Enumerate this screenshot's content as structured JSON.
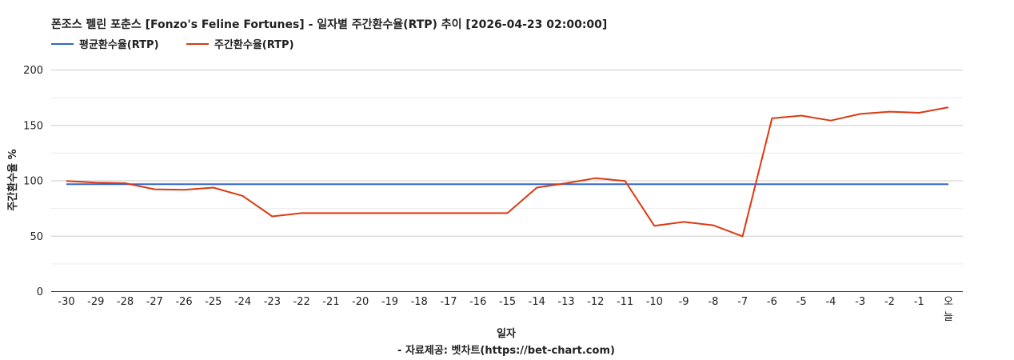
{
  "chart_data": {
    "type": "line",
    "title": "폰조스 펠린 포춘스 [Fonzo's Feline Fortunes] - 일자별 주간환수율(RTP) 추이 [2026-04-23 02:00:00]",
    "xlabel": "일자",
    "ylabel": "주간환수율 %",
    "source": "- 자료제공: 벳차트(https://bet-chart.com)",
    "legend_position": "top-left",
    "grid": true,
    "ylim": [
      0,
      200
    ],
    "yticks": [
      "0",
      "50",
      "100",
      "150",
      "200"
    ],
    "categories": [
      "-30",
      "-29",
      "-28",
      "-27",
      "-26",
      "-25",
      "-24",
      "-23",
      "-22",
      "-21",
      "-20",
      "-19",
      "-18",
      "-17",
      "-16",
      "-15",
      "-14",
      "-13",
      "-12",
      "-11",
      "-10",
      "-9",
      "-8",
      "-7",
      "-6",
      "-5",
      "-4",
      "-3",
      "-2",
      "-1",
      "오늘"
    ],
    "series": [
      {
        "name": "평균환수율(RTP)",
        "color": "#3366cc",
        "values": [
          96.5,
          96.5,
          96.5,
          96.5,
          96.5,
          96.5,
          96.5,
          96.5,
          96.5,
          96.5,
          96.5,
          96.5,
          96.5,
          96.5,
          96.5,
          96.5,
          96.5,
          96.5,
          96.5,
          96.5,
          96.5,
          96.5,
          96.5,
          96.5,
          96.5,
          96.5,
          96.5,
          96.5,
          96.5,
          96.5,
          96.5
        ]
      },
      {
        "name": "주간환수율(RTP)",
        "color": "#dc3912",
        "values": [
          99.5,
          98,
          97.5,
          92,
          91.5,
          93.5,
          86,
          67.5,
          70.5,
          70.5,
          70.5,
          70.5,
          70.5,
          70.5,
          70.5,
          70.5,
          93.5,
          97.5,
          102,
          99.5,
          59,
          62.5,
          59.5,
          49.5,
          156,
          158.5,
          154,
          160,
          162,
          161,
          166
        ]
      }
    ]
  }
}
